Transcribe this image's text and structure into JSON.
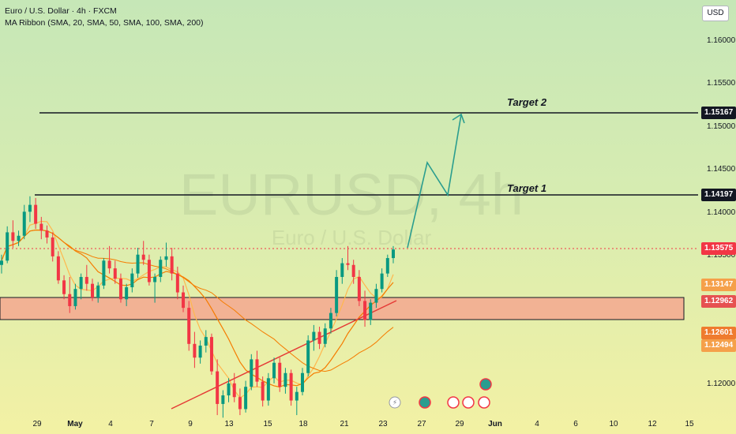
{
  "header": {
    "symbol_line": "Euro / U.S. Dollar · 4h · FXCM",
    "indicator_line": "MA Ribbon (SMA, 20, SMA, 50, SMA, 100, SMA, 200)"
  },
  "currency_button": "USD",
  "watermark": {
    "ticker": "EURUSD, 4h",
    "name": "Euro / U.S. Dollar"
  },
  "annotations": {
    "target1": "Target 1",
    "target2": "Target 2"
  },
  "colors": {
    "bull": "#089981",
    "bear": "#f23645",
    "zone_fill": "#f5a78f",
    "trendline": "#e53935",
    "projection": "#2a9d8f",
    "ma_orange": "#f57c00",
    "ma_light": "#ffb74d"
  },
  "chart_data": {
    "type": "candlestick",
    "symbol": "EURUSD",
    "timeframe": "4h",
    "y_axis_ticks": [
      "1.16000",
      "1.15500",
      "1.15000",
      "1.14500",
      "1.14000",
      "1.13500",
      "1.12000"
    ],
    "ylim": [
      1.1155,
      1.1635
    ],
    "x_axis_ticks": [
      "29",
      "May",
      "4",
      "7",
      "9",
      "13",
      "15",
      "18",
      "21",
      "23",
      "27",
      "29",
      "Jun",
      "4",
      "6",
      "10",
      "12",
      "15"
    ],
    "price_labels": [
      {
        "value": "1.15167",
        "style": "black"
      },
      {
        "value": "1.14197",
        "style": "black"
      },
      {
        "value": "1.13575",
        "style": "red"
      },
      {
        "value": "1.13147",
        "style": "orange"
      },
      {
        "value": "1.12962",
        "style": "red"
      },
      {
        "value": "1.12601",
        "style": "orange"
      },
      {
        "value": "1.12494",
        "style": "orange"
      }
    ],
    "horizontal_levels": [
      {
        "label": "Target 2",
        "price": 1.15167
      },
      {
        "label": "Target 1",
        "price": 1.14197
      }
    ],
    "current_price": 1.13575,
    "demand_zone": {
      "top": 1.1305,
      "bottom": 1.128
    },
    "candles": [
      [
        1.134,
        1.1352,
        1.133,
        1.1345
      ],
      [
        1.1345,
        1.1385,
        1.1342,
        1.1378
      ],
      [
        1.1378,
        1.1392,
        1.136,
        1.1368
      ],
      [
        1.1368,
        1.138,
        1.1362,
        1.1374
      ],
      [
        1.1374,
        1.141,
        1.137,
        1.1402
      ],
      [
        1.1402,
        1.142,
        1.139,
        1.141
      ],
      [
        1.141,
        1.1418,
        1.1382,
        1.1388
      ],
      [
        1.1388,
        1.1396,
        1.137,
        1.138
      ],
      [
        1.138,
        1.1386,
        1.1365,
        1.1372
      ],
      [
        1.1372,
        1.1378,
        1.1344,
        1.135
      ],
      [
        1.135,
        1.1356,
        1.1318,
        1.1322
      ],
      [
        1.1322,
        1.1328,
        1.13,
        1.1306
      ],
      [
        1.1306,
        1.1326,
        1.1284,
        1.1292
      ],
      [
        1.1292,
        1.1318,
        1.1288,
        1.1312
      ],
      [
        1.1312,
        1.133,
        1.13,
        1.1326
      ],
      [
        1.1326,
        1.134,
        1.131,
        1.1318
      ],
      [
        1.1318,
        1.1324,
        1.1298,
        1.1302
      ],
      [
        1.1302,
        1.132,
        1.1296,
        1.1316
      ],
      [
        1.1316,
        1.1348,
        1.1312,
        1.1345
      ],
      [
        1.1345,
        1.1362,
        1.133,
        1.1336
      ],
      [
        1.1336,
        1.1345,
        1.1318,
        1.1324
      ],
      [
        1.1324,
        1.133,
        1.1296,
        1.13
      ],
      [
        1.13,
        1.1318,
        1.1292,
        1.1314
      ],
      [
        1.1314,
        1.1336,
        1.1308,
        1.133
      ],
      [
        1.133,
        1.136,
        1.1325,
        1.1352
      ],
      [
        1.1352,
        1.1368,
        1.134,
        1.1346
      ],
      [
        1.1346,
        1.1352,
        1.1316,
        1.132
      ],
      [
        1.132,
        1.133,
        1.1296,
        1.1326
      ],
      [
        1.1326,
        1.135,
        1.132,
        1.1346
      ],
      [
        1.1346,
        1.1366,
        1.1338,
        1.135
      ],
      [
        1.135,
        1.136,
        1.1322,
        1.133
      ],
      [
        1.133,
        1.1338,
        1.13,
        1.1308
      ],
      [
        1.1308,
        1.1316,
        1.1285,
        1.129
      ],
      [
        1.129,
        1.1298,
        1.124,
        1.1248
      ],
      [
        1.1248,
        1.1262,
        1.122,
        1.1232
      ],
      [
        1.1232,
        1.1252,
        1.1225,
        1.1246
      ],
      [
        1.1246,
        1.1264,
        1.1238,
        1.1256
      ],
      [
        1.1256,
        1.126,
        1.1212,
        1.1216
      ],
      [
        1.1216,
        1.123,
        1.1165,
        1.1178
      ],
      [
        1.1178,
        1.1194,
        1.1162,
        1.1188
      ],
      [
        1.1188,
        1.1208,
        1.118,
        1.1202
      ],
      [
        1.1202,
        1.1214,
        1.118,
        1.1186
      ],
      [
        1.1186,
        1.1196,
        1.1165,
        1.1172
      ],
      [
        1.1172,
        1.1205,
        1.1168,
        1.1198
      ],
      [
        1.1198,
        1.1236,
        1.1194,
        1.123
      ],
      [
        1.123,
        1.124,
        1.1198,
        1.1204
      ],
      [
        1.1204,
        1.121,
        1.1175,
        1.1182
      ],
      [
        1.1182,
        1.1214,
        1.1176,
        1.1208
      ],
      [
        1.1208,
        1.1232,
        1.1202,
        1.1226
      ],
      [
        1.1226,
        1.1232,
        1.1192,
        1.1198
      ],
      [
        1.1198,
        1.122,
        1.119,
        1.1214
      ],
      [
        1.1214,
        1.1218,
        1.1176,
        1.1182
      ],
      [
        1.1182,
        1.1198,
        1.1165,
        1.1192
      ],
      [
        1.1192,
        1.122,
        1.1188,
        1.1214
      ],
      [
        1.1214,
        1.1258,
        1.121,
        1.1252
      ],
      [
        1.1252,
        1.127,
        1.124,
        1.1262
      ],
      [
        1.1262,
        1.1268,
        1.1242,
        1.1248
      ],
      [
        1.1248,
        1.1272,
        1.1244,
        1.1266
      ],
      [
        1.1266,
        1.129,
        1.126,
        1.1284
      ],
      [
        1.1284,
        1.1334,
        1.128,
        1.1326
      ],
      [
        1.1326,
        1.1348,
        1.1318,
        1.1342
      ],
      [
        1.1342,
        1.1362,
        1.1334,
        1.134
      ],
      [
        1.134,
        1.1346,
        1.1318,
        1.1326
      ],
      [
        1.1326,
        1.1334,
        1.1292,
        1.1298
      ],
      [
        1.1298,
        1.131,
        1.1268,
        1.1276
      ],
      [
        1.1276,
        1.13,
        1.127,
        1.1296
      ],
      [
        1.1296,
        1.1318,
        1.129,
        1.1312
      ],
      [
        1.1312,
        1.1336,
        1.1308,
        1.133
      ],
      [
        1.133,
        1.1352,
        1.1326,
        1.1348
      ],
      [
        1.1348,
        1.1362,
        1.1342,
        1.1358
      ]
    ]
  }
}
